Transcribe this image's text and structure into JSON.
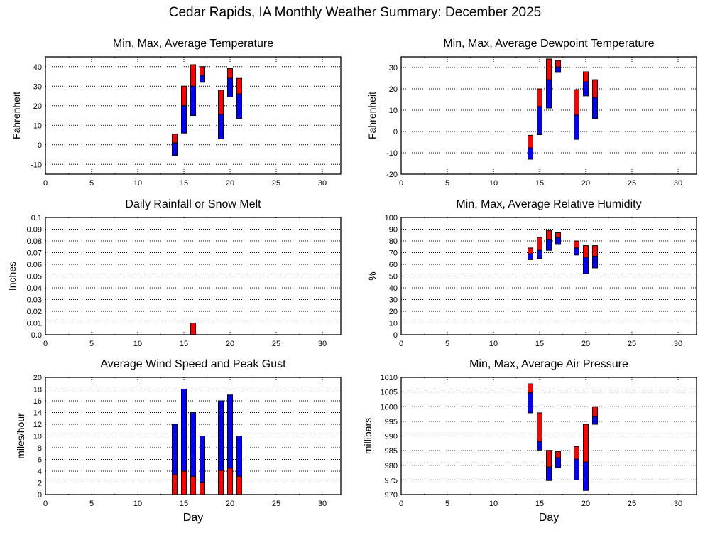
{
  "page": {
    "title": "Cedar Rapids, IA Monthly Weather Summary: December 2025"
  },
  "colors": {
    "red": "#ff0000",
    "blue": "#0000ff",
    "grid": "#000000"
  },
  "chart_data": [
    {
      "id": "temperature",
      "type": "bar",
      "subtype": "range-bar (min/avg/max)",
      "title": "Min, Max, Average Temperature",
      "xlabel": "",
      "ylabel": "Fahrenheit",
      "xlim": [
        0,
        32
      ],
      "ylim": [
        -15,
        45
      ],
      "xticks": [
        0,
        5,
        10,
        15,
        20,
        25,
        30
      ],
      "yticks": [
        -10,
        0,
        10,
        20,
        30,
        40
      ],
      "ytick_labels": [
        "-10",
        "0",
        "10",
        "20",
        "30",
        "40"
      ],
      "grid": true,
      "legend": "none",
      "series_colors": {
        "min_to_avg": "blue",
        "avg_to_max": "red"
      },
      "days": [
        14,
        15,
        16,
        17,
        19,
        20,
        21
      ],
      "min": [
        -5.5,
        6,
        15,
        32,
        3,
        24.5,
        13.5
      ],
      "avg": [
        1,
        20,
        30,
        35.5,
        15.5,
        34,
        26
      ],
      "max": [
        5.5,
        30,
        41,
        40,
        28,
        39,
        34
      ]
    },
    {
      "id": "dewpoint",
      "type": "bar",
      "subtype": "range-bar (min/avg/max)",
      "title": "Min, Max, Average Dewpoint Temperature",
      "xlabel": "",
      "ylabel": "Fahrenheit",
      "xlim": [
        0,
        32
      ],
      "ylim": [
        -20,
        35
      ],
      "xticks": [
        0,
        5,
        10,
        15,
        20,
        25,
        30
      ],
      "yticks": [
        -20,
        -10,
        0,
        10,
        20,
        30
      ],
      "ytick_labels": [
        "-20",
        "-10",
        "0",
        "10",
        "20",
        "30"
      ],
      "grid": true,
      "legend": "none",
      "series_colors": {
        "min_to_avg": "blue",
        "avg_to_max": "red"
      },
      "days": [
        14,
        15,
        16,
        17,
        19,
        20,
        21
      ],
      "min": [
        -13,
        -1.5,
        11,
        27.7,
        -3.7,
        16.7,
        6
      ],
      "avg": [
        -7.7,
        11.7,
        24.3,
        30.3,
        7.7,
        23.3,
        16
      ],
      "max": [
        -1.8,
        20,
        34,
        33.3,
        19.6,
        28,
        24.3
      ]
    },
    {
      "id": "rainfall",
      "type": "bar",
      "title": "Daily Rainfall or Snow Melt",
      "xlabel": "",
      "ylabel": "Inches",
      "xlim": [
        0,
        32
      ],
      "ylim": [
        0,
        0.1
      ],
      "xticks": [
        0,
        5,
        10,
        15,
        20,
        25,
        30
      ],
      "yticks": [
        0,
        0.01,
        0.02,
        0.03,
        0.04,
        0.05,
        0.06,
        0.07,
        0.08,
        0.09,
        0.1
      ],
      "ytick_labels": [
        "0.0",
        "0.01",
        "0.02",
        "0.03",
        "0.04",
        "0.05",
        "0.06",
        "0.07",
        "0.08",
        "0.09",
        "0.1"
      ],
      "grid": true,
      "legend": "none",
      "bar_color": "red",
      "days": [
        16
      ],
      "values": [
        0.01
      ]
    },
    {
      "id": "humidity",
      "type": "bar",
      "subtype": "range-bar (min/avg/max)",
      "title": "Min, Max, Average Relative Humidity",
      "xlabel": "",
      "ylabel": "%",
      "xlim": [
        0,
        32
      ],
      "ylim": [
        0,
        100
      ],
      "xticks": [
        0,
        5,
        10,
        15,
        20,
        25,
        30
      ],
      "yticks": [
        0,
        10,
        20,
        30,
        40,
        50,
        60,
        70,
        80,
        90,
        100
      ],
      "ytick_labels": [
        "0",
        "10",
        "20",
        "30",
        "40",
        "50",
        "60",
        "70",
        "80",
        "90",
        "100"
      ],
      "grid": true,
      "legend": "none",
      "series_colors": {
        "min_to_avg": "blue",
        "avg_to_max": "red"
      },
      "days": [
        14,
        15,
        16,
        17,
        19,
        20,
        21
      ],
      "min": [
        64,
        65,
        72,
        77,
        68,
        52,
        57
      ],
      "avg": [
        69,
        72,
        81,
        83,
        74,
        66,
        67
      ],
      "max": [
        74,
        83,
        89,
        87,
        80,
        76,
        76
      ]
    },
    {
      "id": "wind",
      "type": "bar",
      "subtype": "overlaid bars (average speed, peak gust)",
      "title": "Average Wind Speed and Peak Gust",
      "xlabel": "Day",
      "ylabel": "miles/hour",
      "xlim": [
        0,
        32
      ],
      "ylim": [
        0,
        20
      ],
      "xticks": [
        0,
        5,
        10,
        15,
        20,
        25,
        30
      ],
      "yticks": [
        0,
        2,
        4,
        6,
        8,
        10,
        12,
        14,
        16,
        18,
        20
      ],
      "ytick_labels": [
        "0",
        "2",
        "4",
        "6",
        "8",
        "10",
        "12",
        "14",
        "16",
        "18",
        "20"
      ],
      "grid": true,
      "legend": "none",
      "series": [
        {
          "name": "Peak Gust",
          "color": "blue",
          "values": [
            12,
            18,
            14,
            10,
            16,
            17,
            10
          ]
        },
        {
          "name": "Average Wind Speed",
          "color": "red",
          "values": [
            3.4,
            4,
            3.1,
            2.1,
            4.1,
            4.5,
            3.1
          ]
        }
      ],
      "days": [
        14,
        15,
        16,
        17,
        19,
        20,
        21
      ]
    },
    {
      "id": "pressure",
      "type": "bar",
      "subtype": "range-bar (min/avg/max)",
      "title": "Min, Max, Average Air Pressure",
      "xlabel": "Day",
      "ylabel": "millibars",
      "xlim": [
        0,
        32
      ],
      "ylim": [
        970,
        1010
      ],
      "xticks": [
        0,
        5,
        10,
        15,
        20,
        25,
        30
      ],
      "yticks": [
        970,
        975,
        980,
        985,
        990,
        995,
        1000,
        1005,
        1010
      ],
      "ytick_labels": [
        "970",
        "975",
        "980",
        "985",
        "990",
        "995",
        "1000",
        "1005",
        "1010"
      ],
      "grid": true,
      "legend": "none",
      "series_colors": {
        "min_to_avg": "blue",
        "avg_to_max": "red"
      },
      "days": [
        14,
        15,
        16,
        17,
        19,
        20,
        21
      ],
      "min": [
        997.9,
        985.2,
        974.8,
        979.2,
        975,
        971.4,
        994
      ],
      "avg": [
        1004.7,
        988.1,
        979.4,
        982.6,
        982.1,
        981.1,
        996.6
      ],
      "max": [
        1007.8,
        997.9,
        985.1,
        984.7,
        986.4,
        994,
        1000
      ]
    }
  ]
}
